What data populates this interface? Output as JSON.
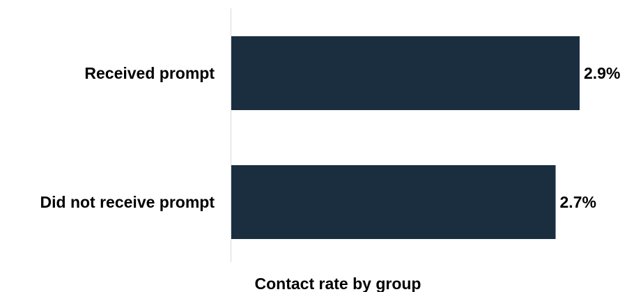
{
  "chart_data": {
    "type": "bar",
    "orientation": "horizontal",
    "categories": [
      "Received prompt",
      "Did not receive prompt"
    ],
    "values": [
      2.9,
      2.7
    ],
    "value_labels": [
      "2.9%",
      "2.7%"
    ],
    "xlabel": "Contact rate by group",
    "xlim": [
      0,
      2.9
    ],
    "grid": false,
    "bar_color": "#1a2e40",
    "axis_line_color": "#d9d9d9"
  }
}
